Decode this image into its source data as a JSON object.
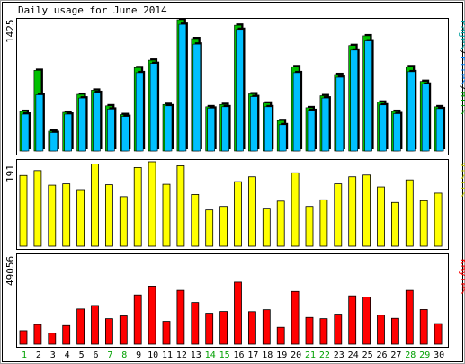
{
  "chart_data": {
    "type": "bar",
    "title": "Daily usage for June 2014",
    "categories": [
      "1",
      "2",
      "3",
      "4",
      "5",
      "6",
      "7",
      "8",
      "9",
      "10",
      "11",
      "12",
      "13",
      "14",
      "15",
      "16",
      "17",
      "18",
      "19",
      "20",
      "21",
      "22",
      "23",
      "24",
      "25",
      "26",
      "27",
      "28",
      "29",
      "30"
    ],
    "weekend_days": [
      "1",
      "7",
      "8",
      "14",
      "15",
      "21",
      "22",
      "28",
      "29"
    ],
    "panels": [
      {
        "id": "hits",
        "ylabel_parts": [
          {
            "text": "Pages",
            "color": "#00a0a0"
          },
          {
            "text": "/",
            "color": "#000000"
          },
          {
            "text": "Files",
            "color": "#0080ff"
          },
          {
            "text": "/",
            "color": "#000000"
          },
          {
            "text": "Hits",
            "color": "#00a000"
          }
        ],
        "ymax_label": "1425",
        "ymax": 1425,
        "series": [
          {
            "name": "Hits",
            "color": "#00c000",
            "values": [
              430,
              875,
              215,
              420,
              615,
              660,
              490,
              395,
              905,
              985,
              505,
              1425,
              1220,
              480,
              505,
              1365,
              620,
              520,
              330,
              915,
              470,
              600,
              830,
              1145,
              1250,
              530,
              430,
              915,
              755,
              480
            ]
          },
          {
            "name": "Files",
            "color": "#00c0ff",
            "values": [
              400,
              610,
              200,
              400,
              575,
              635,
              455,
              375,
              850,
              950,
              490,
              1375,
              1160,
              465,
              480,
              1320,
              590,
              480,
              285,
              850,
              440,
              575,
              800,
              1095,
              1195,
              500,
              405,
              860,
              725,
              460
            ]
          },
          {
            "name": "Pages",
            "color": "#00a0a0",
            "values": [
              0,
              0,
              0,
              0,
              0,
              0,
              0,
              0,
              0,
              0,
              0,
              0,
              0,
              0,
              0,
              0,
              0,
              0,
              0,
              0,
              0,
              0,
              0,
              0,
              0,
              0,
              0,
              0,
              0,
              0
            ]
          }
        ]
      },
      {
        "id": "visits",
        "ylabel_parts": [
          {
            "text": "Visits",
            "color": "#c8c800"
          }
        ],
        "ymax_label": "191",
        "ymax": 191,
        "series": [
          {
            "name": "Visits",
            "color": "#ffff00",
            "values": [
              160,
              171,
              138,
              141,
              128,
              186,
              139,
              112,
              178,
              191,
              140,
              182,
              117,
              82,
              90,
              146,
              157,
              86,
              102,
              166,
              90,
              105,
              141,
              157,
              161,
              134,
              99,
              150,
              103,
              120
            ]
          }
        ]
      },
      {
        "id": "kbytes",
        "ylabel_parts": [
          {
            "text": "KBytes",
            "color": "#ff0000"
          }
        ],
        "ymax_label": "49056",
        "ymax": 49056,
        "series": [
          {
            "name": "KBytes",
            "color": "#ff0000",
            "values": [
              7700,
              11200,
              6300,
              10600,
              20000,
              22000,
              14500,
              16100,
              28000,
              33000,
              13000,
              30600,
              23700,
              17600,
              18600,
              35300,
              18500,
              19600,
              9600,
              30000,
              15200,
              14500,
              17100,
              27500,
              26800,
              16500,
              14700,
              30600,
              19700,
              11700
            ]
          }
        ]
      }
    ]
  }
}
